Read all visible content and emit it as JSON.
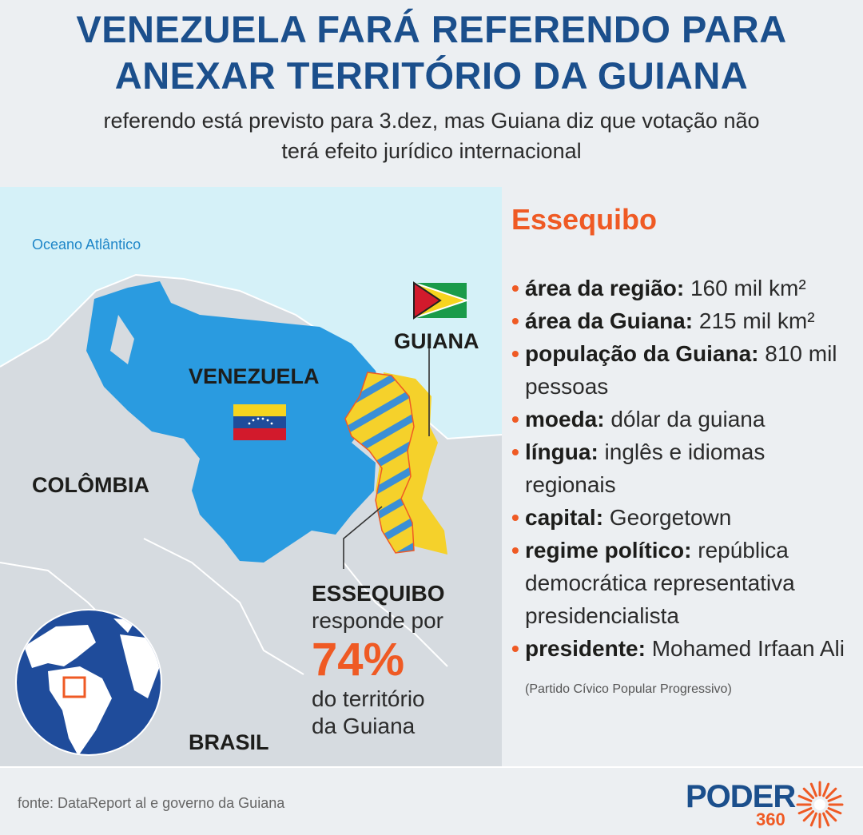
{
  "header": {
    "title_line1": "VENEZUELA FARÁ REFERENDO PARA",
    "title_line2": "ANEXAR TERRITÓRIO DA GUIANA",
    "subtitle_line1": "referendo está previsto para 3.dez, mas Guiana diz que votação não",
    "subtitle_line2": "terá efeito jurídico internacional"
  },
  "map": {
    "ocean_label": "Oceano Atlântico",
    "venezuela_label": "VENEZUELA",
    "guiana_label": "GUIANA",
    "colombia_label": "COLÔMBIA",
    "brasil_label": "BRASIL",
    "essequibo": {
      "name": "ESSEQUIBO",
      "text_before": "responde por",
      "percent": "74%",
      "text_after_1": "do território",
      "text_after_2": "da Guiana"
    },
    "colors": {
      "venezuela": "#2a9be0",
      "guiana": "#f5d12b",
      "stripes": "#3b8fd6",
      "ocean": "#d5f1f8",
      "land": "#d6dbe0",
      "accent": "#ef5a24"
    }
  },
  "info": {
    "title": "Essequibo",
    "items": [
      {
        "key": "área da região:",
        "value": " 160 mil km²"
      },
      {
        "key": "área da Guiana:",
        "value": " 215 mil km²"
      },
      {
        "key": "população da Guiana:",
        "value": " 810 mil pessoas"
      },
      {
        "key": "moeda:",
        "value": " dólar da guiana"
      },
      {
        "key": "língua:",
        "value": " inglês e idiomas regionais"
      },
      {
        "key": "capital:",
        "value": " Georgetown"
      },
      {
        "key": "regime político:",
        "value": " república democrática representativa presidencialista"
      },
      {
        "key": "presidente:",
        "value": " Mohamed Irfaan Ali",
        "note": " (Partido Cívico Popular Progressivo)"
      }
    ]
  },
  "footer": {
    "source": "fonte: DataReport al e governo da Guiana",
    "logo_word": "PODER",
    "logo_number": "360"
  }
}
